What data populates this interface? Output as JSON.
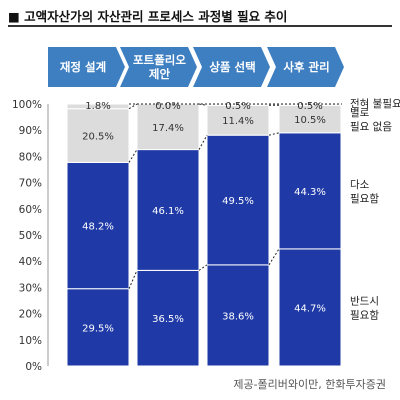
{
  "title": "■ 고액자산가의 자산관리 프로세스 과정별 필요 추이",
  "source": "제공-폴리버와이만, 한화투자증권",
  "colors": {
    "stage_box": "#3e7fc1",
    "stage_text": "#ffffff",
    "seg_blue": "#1f3aa6",
    "seg_light": "#dcdcdc",
    "label_on_blue": "#ffffff",
    "label_on_light": "#333333"
  },
  "chart_data": {
    "type": "bar",
    "stacked": true,
    "categories": [
      "재정 설계",
      "포트폴리오 제안",
      "상품 선택",
      "사후 관리"
    ],
    "yticks": [
      "0%",
      "10%",
      "20%",
      "30%",
      "40%",
      "50%",
      "60%",
      "70%",
      "80%",
      "90%",
      "100%"
    ],
    "ylim": [
      0,
      100
    ],
    "grid": false,
    "legend": "right",
    "series": [
      {
        "name": "반드시 필요함",
        "values": [
          29.5,
          36.5,
          38.6,
          44.7
        ],
        "labels": [
          "29.5%",
          "36.5%",
          "38.6%",
          "44.7%"
        ]
      },
      {
        "name": "다소 필요함",
        "values": [
          48.2,
          46.1,
          49.5,
          44.3
        ],
        "labels": [
          "48.2%",
          "46.1%",
          "49.5%",
          "44.3%"
        ]
      },
      {
        "name": "별로 필요 없음",
        "values": [
          20.5,
          17.4,
          11.4,
          10.5
        ],
        "labels": [
          "20.5%",
          "17.4%",
          "11.4%",
          "10.5%"
        ]
      },
      {
        "name": "전혀 불필요",
        "values": [
          1.8,
          0.0,
          0.5,
          0.5
        ],
        "labels": [
          "1.8%",
          "0.0%",
          "0.5%",
          "0.5%"
        ]
      }
    ]
  }
}
